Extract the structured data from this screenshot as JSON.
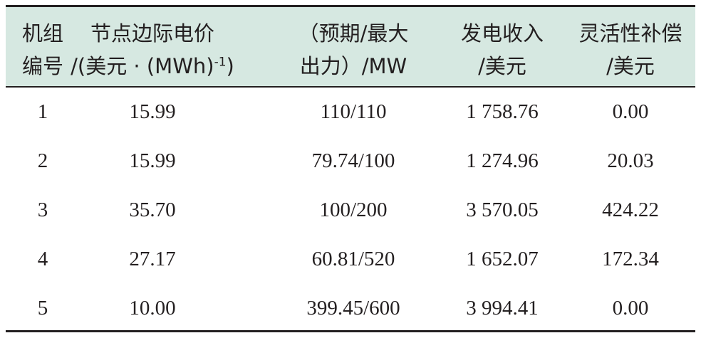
{
  "table": {
    "header": [
      {
        "lines": [
          {
            "text": "机组"
          },
          {
            "text": "编号"
          }
        ]
      },
      {
        "lines": [
          {
            "text": "节点边际电价"
          },
          {
            "text": "/(美元 · (MWh)",
            "sup": "-1",
            "tail": ")"
          }
        ]
      },
      {
        "lines": [
          {
            "text": "（预期/最大"
          },
          {
            "text": "出力）/MW"
          }
        ]
      },
      {
        "lines": [
          {
            "text": "发电收入"
          },
          {
            "text": "/美元"
          }
        ]
      },
      {
        "lines": [
          {
            "text": "灵活性补偿"
          },
          {
            "text": "/美元"
          }
        ]
      }
    ],
    "rows": [
      [
        "1",
        "15.99",
        "110/110",
        "1 758.76",
        "0.00"
      ],
      [
        "2",
        "15.99",
        "79.74/100",
        "1 274.96",
        "20.03"
      ],
      [
        "3",
        "35.70",
        "100/200",
        "3 570.05",
        "424.22"
      ],
      [
        "4",
        "27.17",
        "60.81/520",
        "1 652.07",
        "172.34"
      ],
      [
        "5",
        "10.00",
        "399.45/600",
        "3 994.41",
        "0.00"
      ]
    ]
  }
}
